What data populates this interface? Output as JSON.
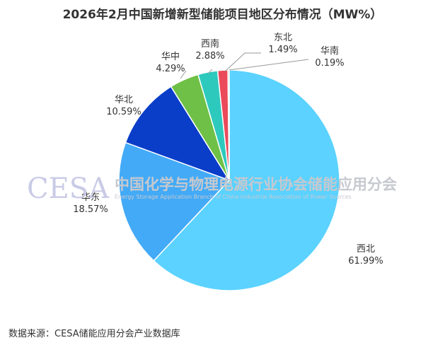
{
  "chart_data": {
    "type": "pie",
    "title": "2026年2月中国新增新型储能项目地区分布情况（MW%）",
    "categories": [
      "西北",
      "华东",
      "华北",
      "华中",
      "西南",
      "东北",
      "华南"
    ],
    "values": [
      61.99,
      18.57,
      10.59,
      4.29,
      2.88,
      1.49,
      0.19
    ],
    "value_labels": [
      "61.99%",
      "18.57%",
      "10.59%",
      "4.29%",
      "2.88%",
      "1.49%",
      "0.19%"
    ],
    "colors": [
      "#5bd2ff",
      "#43aaf7",
      "#0a3ec9",
      "#6ec046",
      "#2ec9bd",
      "#ea4a5a",
      "#a7a9ac"
    ],
    "legend": "none"
  },
  "watermark": {
    "logo": "CESA",
    "name_cn": "中国化学与物理电源行业协会储能应用分会",
    "name_en": "Energy Storage Application Branch of China Industrial Association of Power Sources"
  },
  "source_note": "数据来源：CESA储能应用分会产业数据库"
}
